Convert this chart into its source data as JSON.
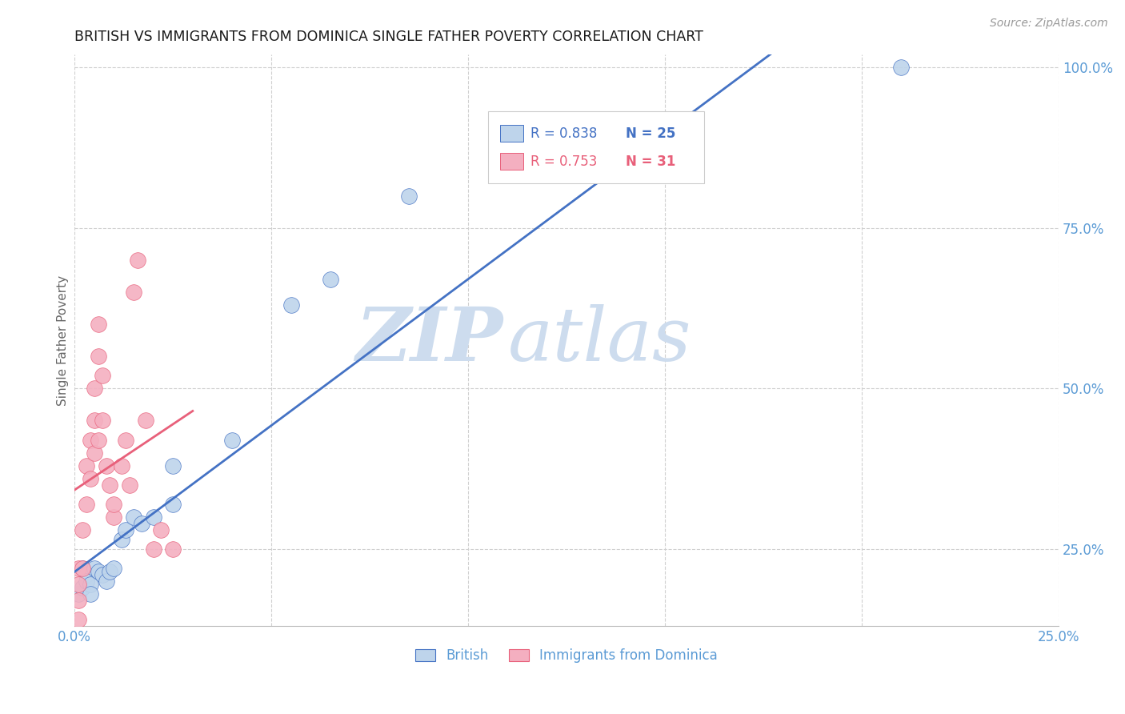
{
  "title": "BRITISH VS IMMIGRANTS FROM DOMINICA SINGLE FATHER POVERTY CORRELATION CHART",
  "source": "Source: ZipAtlas.com",
  "ylabel": "Single Father Poverty",
  "watermark_zip": "ZIP",
  "watermark_atlas": "atlas",
  "xmin": 0.0,
  "xmax": 0.25,
  "ymin": 0.13,
  "ymax": 1.02,
  "xticks": [
    0.0,
    0.05,
    0.1,
    0.15,
    0.2,
    0.25
  ],
  "xtick_labels": [
    "0.0%",
    "",
    "",
    "",
    "",
    "25.0%"
  ],
  "yticks_right": [
    0.25,
    0.5,
    0.75,
    1.0
  ],
  "ytick_labels_right": [
    "25.0%",
    "50.0%",
    "75.0%",
    "100.0%"
  ],
  "blue_label": "British",
  "pink_label": "Immigrants from Dominica",
  "blue_R": 0.838,
  "blue_N": 25,
  "pink_R": 0.753,
  "pink_N": 31,
  "blue_color": "#bed4eb",
  "pink_color": "#f4afc0",
  "blue_line_color": "#4472c4",
  "pink_line_color": "#e8607a",
  "title_color": "#1a1a1a",
  "source_color": "#999999",
  "axis_color": "#5b9bd5",
  "grid_color": "#d0d0d0",
  "watermark_color": "#cddcee",
  "legend_R_color_blue": "#4472c4",
  "legend_N_color_blue": "#4472c4",
  "legend_R_color_pink": "#e8607a",
  "legend_N_color_pink": "#e8607a",
  "blue_x": [
    0.001,
    0.002,
    0.002,
    0.003,
    0.003,
    0.004,
    0.004,
    0.005,
    0.006,
    0.007,
    0.008,
    0.009,
    0.01,
    0.012,
    0.013,
    0.015,
    0.017,
    0.02,
    0.025,
    0.025,
    0.04,
    0.055,
    0.065,
    0.085,
    0.21
  ],
  "blue_y": [
    0.18,
    0.19,
    0.22,
    0.21,
    0.2,
    0.195,
    0.18,
    0.22,
    0.215,
    0.21,
    0.2,
    0.215,
    0.22,
    0.265,
    0.28,
    0.3,
    0.29,
    0.3,
    0.38,
    0.32,
    0.42,
    0.63,
    0.67,
    0.8,
    1.0
  ],
  "pink_x": [
    0.001,
    0.001,
    0.001,
    0.002,
    0.002,
    0.003,
    0.003,
    0.004,
    0.004,
    0.005,
    0.005,
    0.005,
    0.006,
    0.006,
    0.006,
    0.007,
    0.007,
    0.008,
    0.009,
    0.01,
    0.01,
    0.012,
    0.013,
    0.014,
    0.015,
    0.016,
    0.018,
    0.02,
    0.022,
    0.025,
    0.001
  ],
  "pink_y": [
    0.17,
    0.195,
    0.22,
    0.22,
    0.28,
    0.32,
    0.38,
    0.36,
    0.42,
    0.4,
    0.45,
    0.5,
    0.55,
    0.6,
    0.42,
    0.45,
    0.52,
    0.38,
    0.35,
    0.3,
    0.32,
    0.38,
    0.42,
    0.35,
    0.65,
    0.7,
    0.45,
    0.25,
    0.28,
    0.25,
    0.14
  ]
}
